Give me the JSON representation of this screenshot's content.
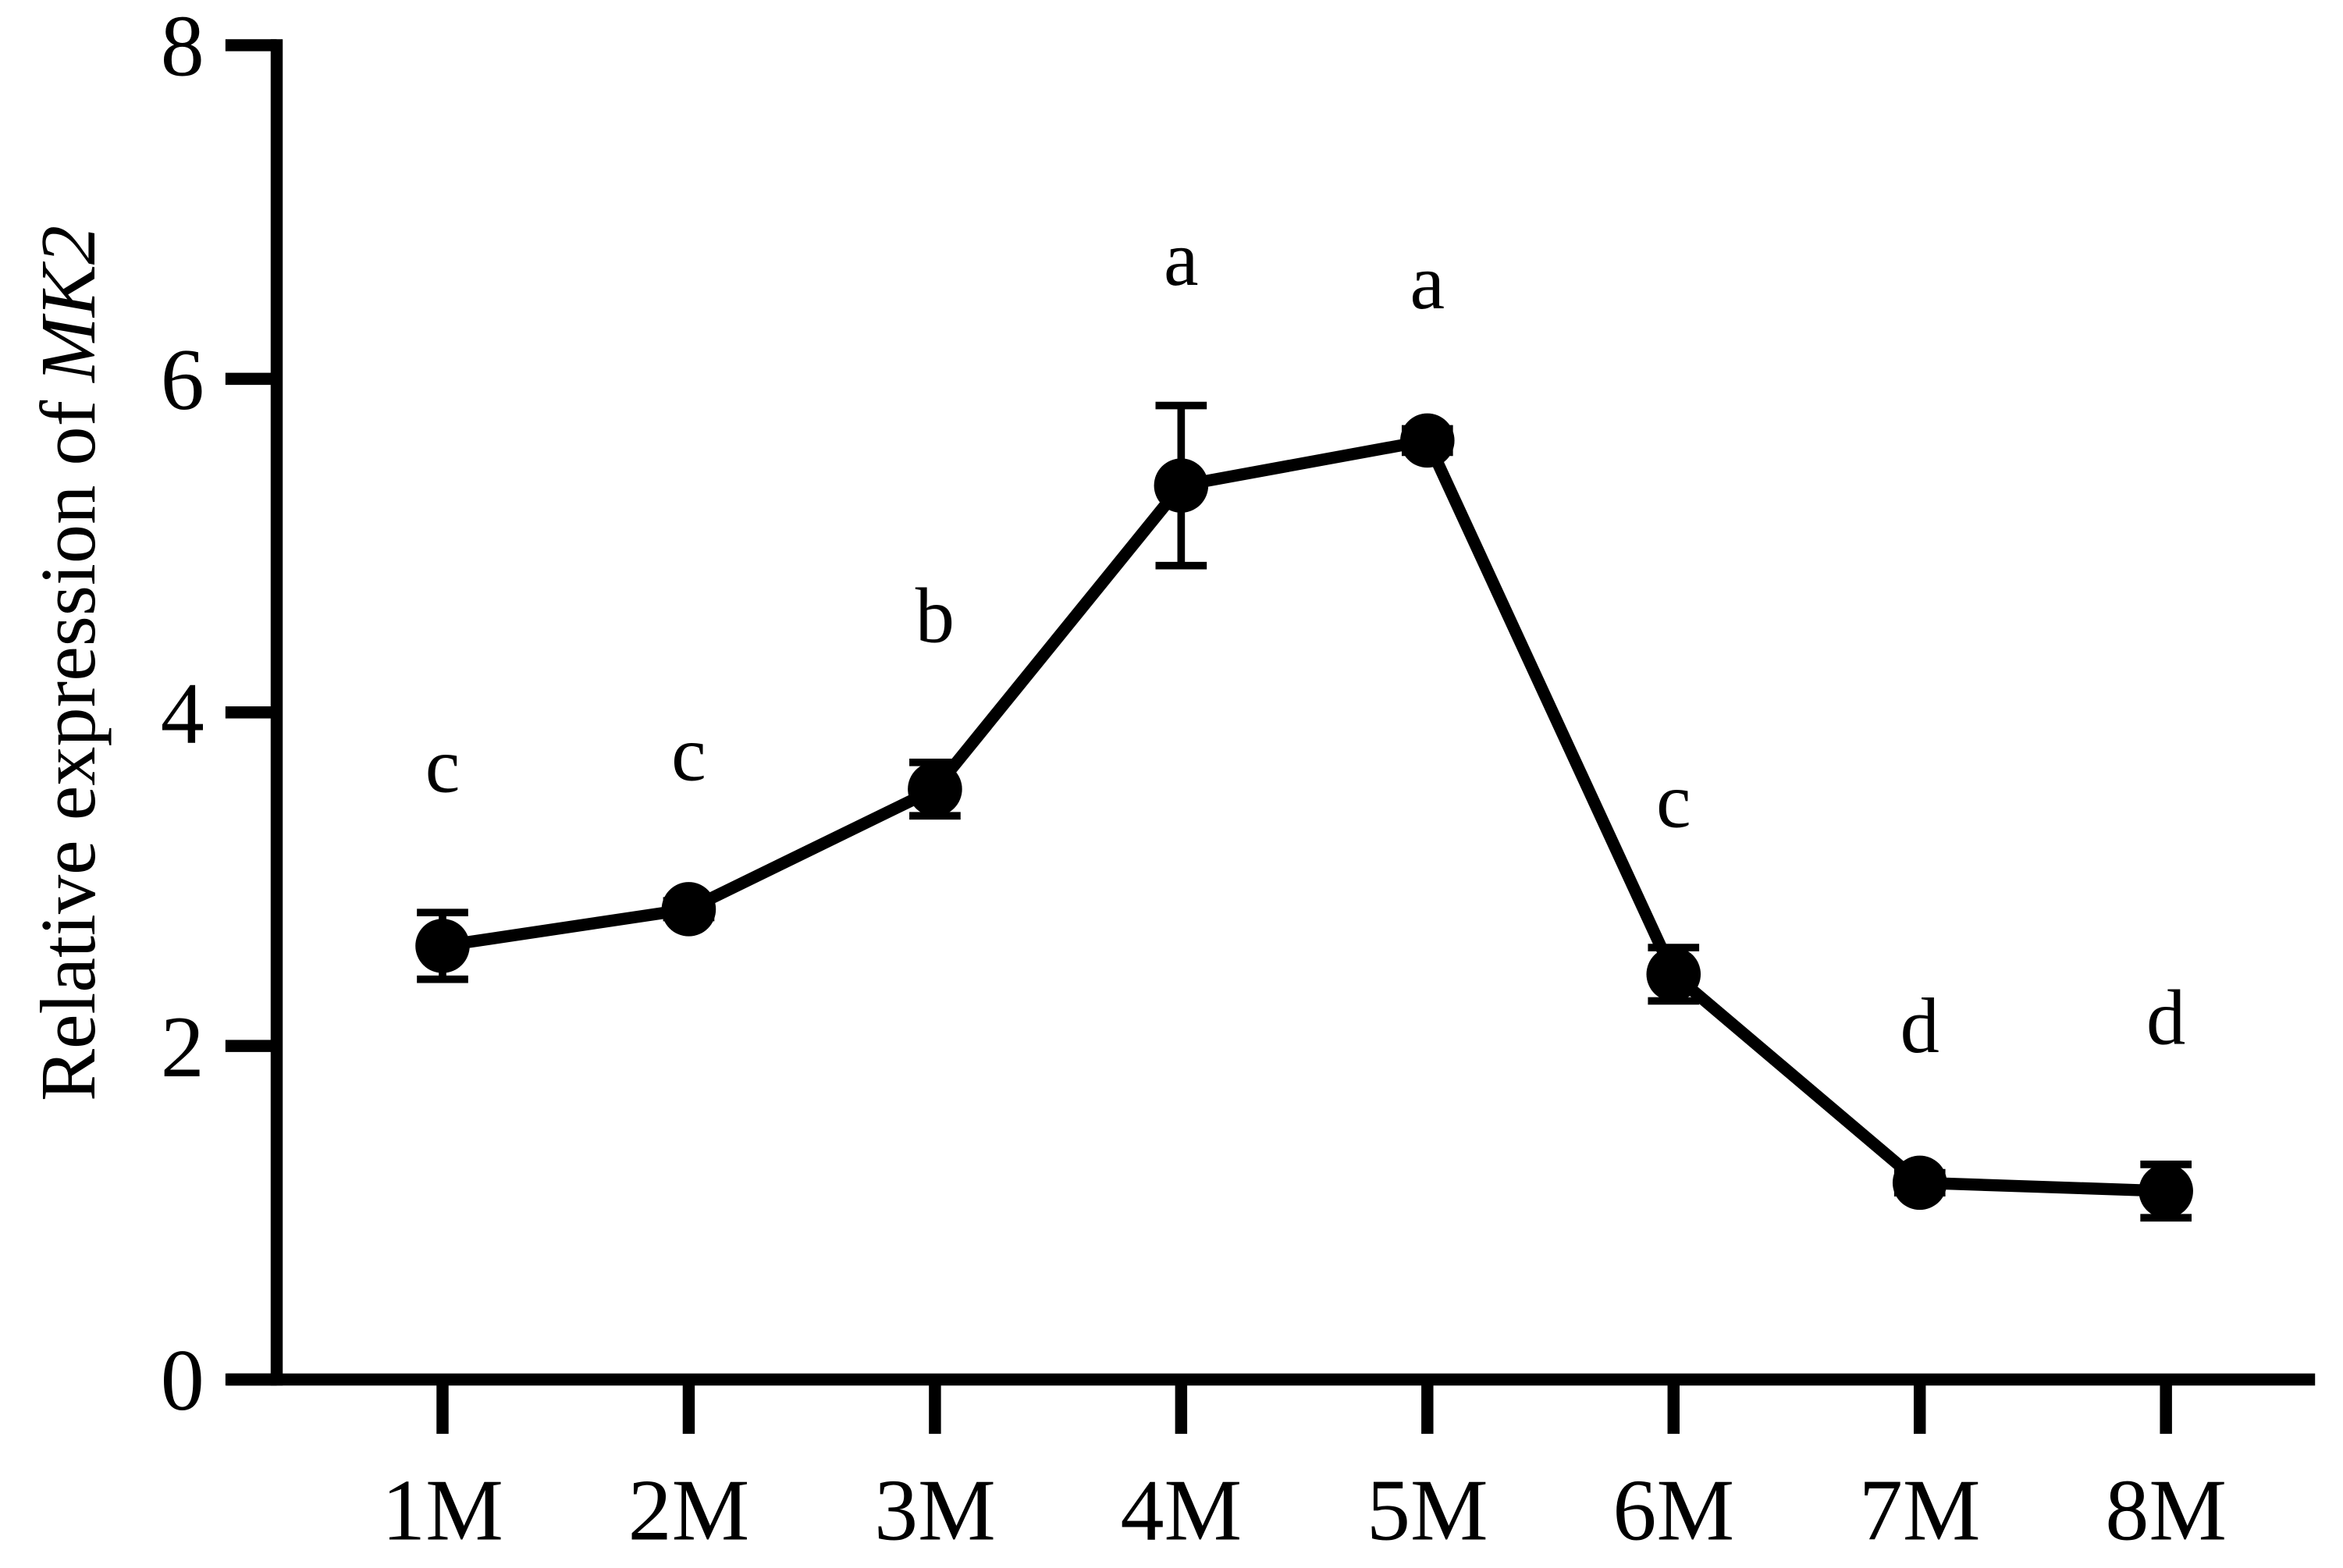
{
  "chart_data": {
    "type": "line",
    "ylabel": "Relative expression of",
    "ylabel_italic": "MK2",
    "categories": [
      "1M",
      "2M",
      "3M",
      "4M",
      "5M",
      "6M",
      "7M",
      "8M"
    ],
    "series": [
      {
        "color": "#000000",
        "values": [
          2.6,
          2.82,
          3.54,
          5.36,
          5.63,
          2.43,
          1.18,
          1.13
        ],
        "errors": [
          0.2,
          0.05,
          0.16,
          0.48,
          0.07,
          0.16,
          0.06,
          0.16
        ]
      }
    ],
    "annotations": [
      "c",
      "c",
      "b",
      "a",
      "a",
      "c",
      "d",
      "d"
    ],
    "ylim": [
      0,
      8
    ],
    "yticks": [
      0,
      2,
      4,
      6,
      8
    ],
    "grid": false
  }
}
